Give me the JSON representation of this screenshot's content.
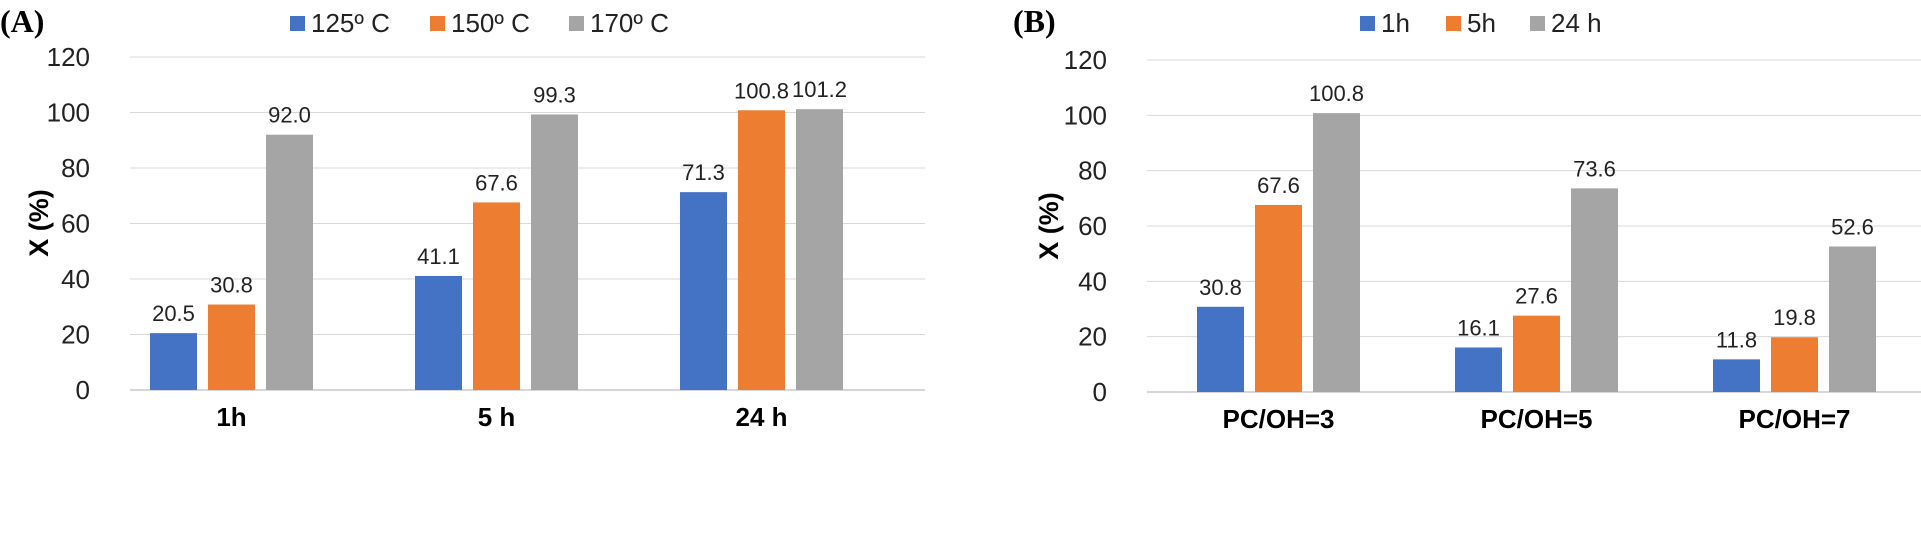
{
  "chart_data": [
    {
      "type": "bar",
      "panel": "(A)",
      "title": "",
      "xlabel": "",
      "ylabel": "X (%)",
      "ylim": [
        0,
        120
      ],
      "yticks": [
        0,
        20,
        40,
        60,
        80,
        100,
        120
      ],
      "grid": true,
      "legend_position": "top",
      "categories": [
        "1h",
        "5 h",
        "24 h"
      ],
      "series": [
        {
          "name": "125º C",
          "color": "#4472c4",
          "values": [
            20.5,
            41.1,
            71.3
          ],
          "labels": [
            "20.5",
            "41.1",
            "71.3"
          ]
        },
        {
          "name": "150º C",
          "color": "#ed7d31",
          "values": [
            30.8,
            67.6,
            100.8
          ],
          "labels": [
            "30.8",
            "67.6",
            "100.8"
          ]
        },
        {
          "name": "170º C",
          "color": "#a5a5a5",
          "values": [
            92.0,
            99.3,
            101.2
          ],
          "labels": [
            "92.0",
            "99.3",
            "101.2"
          ]
        }
      ]
    },
    {
      "type": "bar",
      "panel": "(B)",
      "title": "",
      "xlabel": "",
      "ylabel": "X (%)",
      "ylim": [
        0,
        120
      ],
      "yticks": [
        0,
        20,
        40,
        60,
        80,
        100,
        120
      ],
      "grid": true,
      "legend_position": "top",
      "categories": [
        "PC/OH=3",
        "PC/OH=5",
        "PC/OH=7"
      ],
      "series": [
        {
          "name": "1h",
          "color": "#4472c4",
          "values": [
            30.8,
            16.1,
            11.8
          ],
          "labels": [
            "30.8",
            "16.1",
            "11.8"
          ]
        },
        {
          "name": "5h",
          "color": "#ed7d31",
          "values": [
            67.6,
            27.6,
            19.8
          ],
          "labels": [
            "67.6",
            "27.6",
            "19.8"
          ]
        },
        {
          "name": "24 h",
          "color": "#a5a5a5",
          "values": [
            100.8,
            73.6,
            52.6
          ],
          "labels": [
            "100.8",
            "73.6",
            "52.6"
          ]
        }
      ]
    }
  ]
}
